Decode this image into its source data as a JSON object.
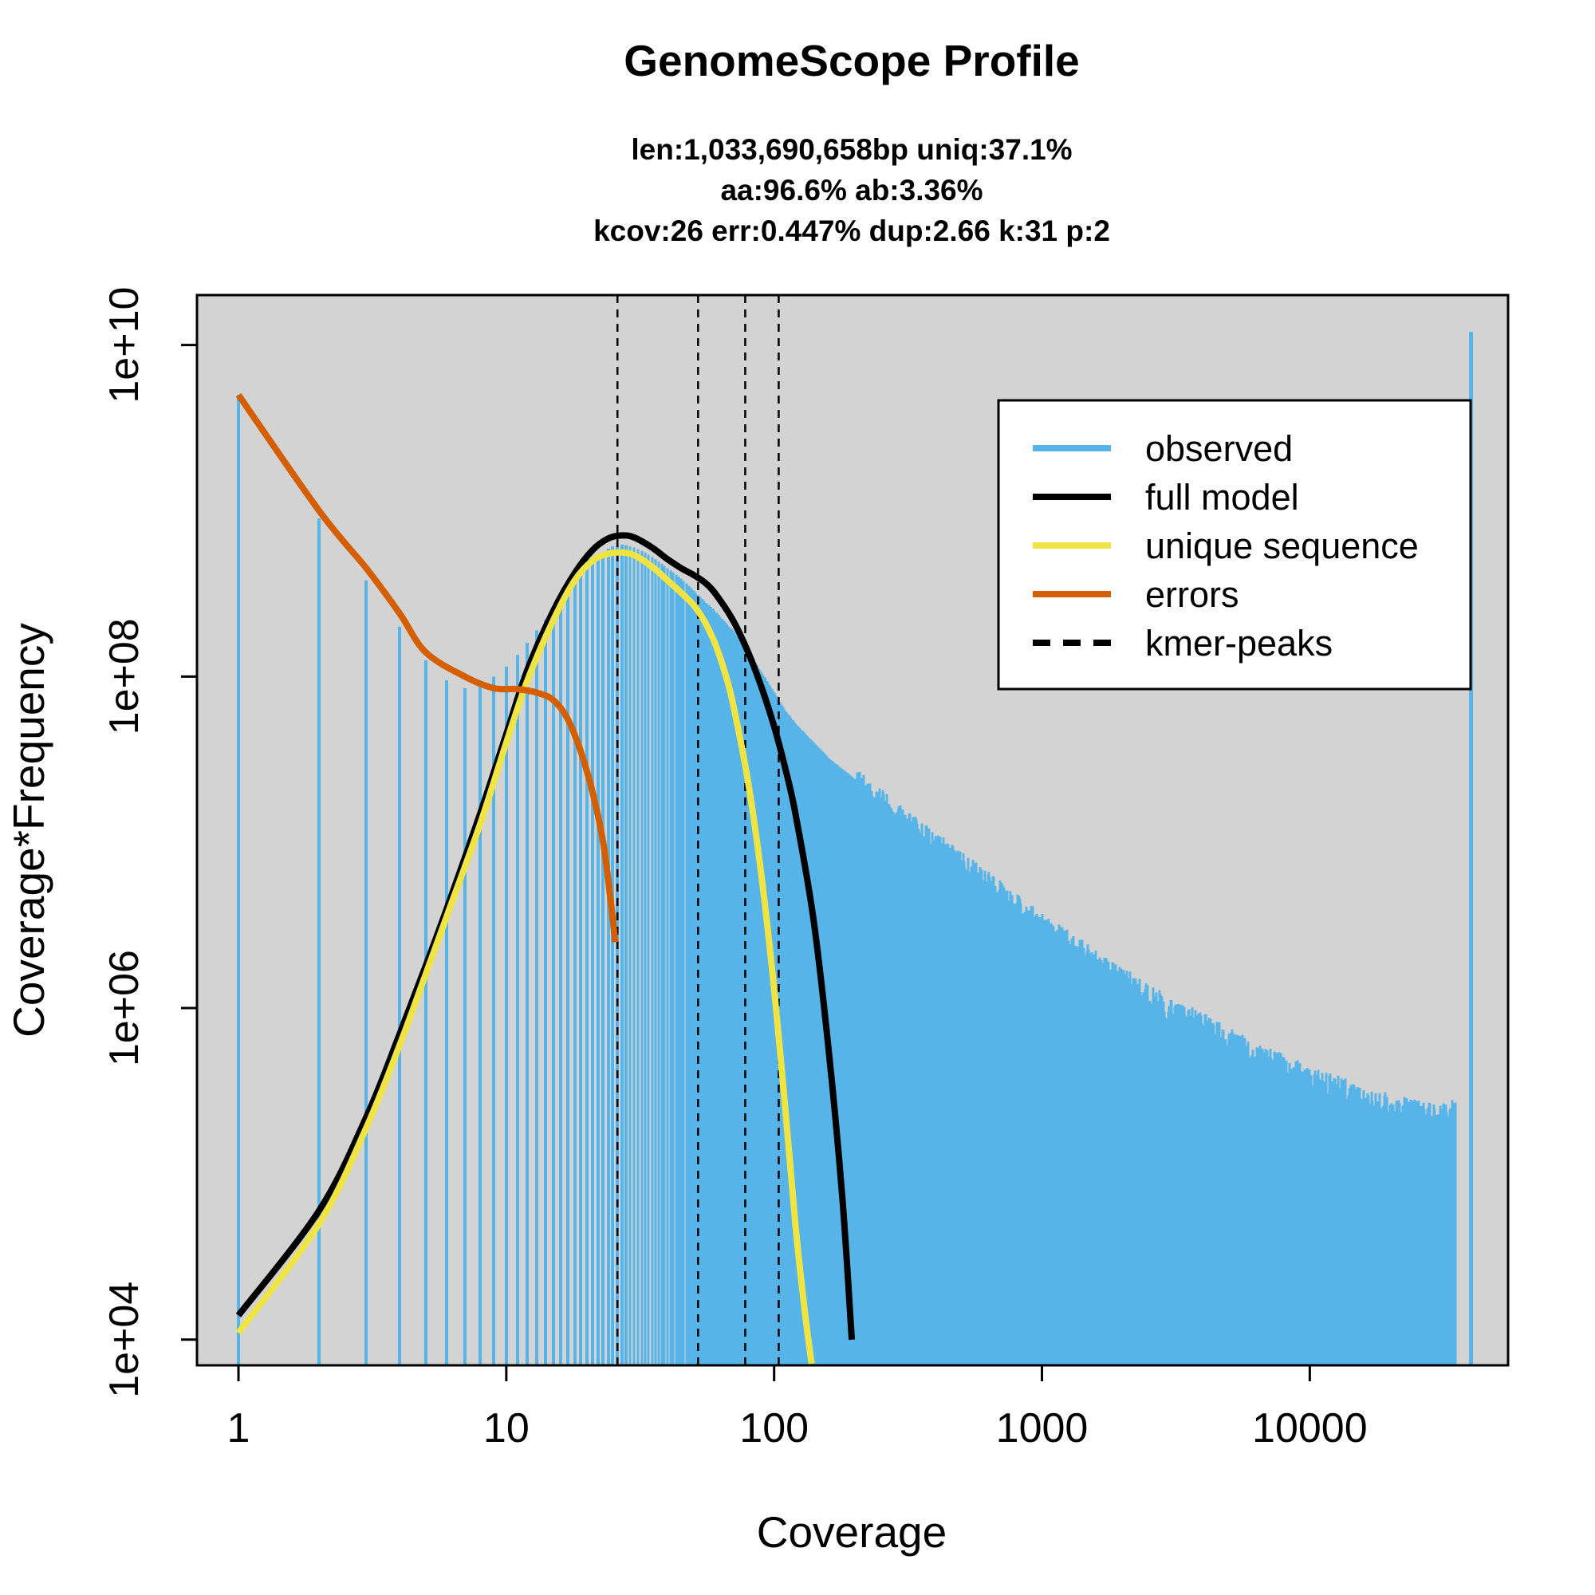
{
  "chart_data": {
    "type": "bar",
    "title": "GenomeScope Profile",
    "subtitle_lines": [
      "len:1,033,690,658bp uniq:37.1%",
      "aa:96.6% ab:3.36%",
      "kcov:26 err:0.447%  dup:2.66  k:31 p:2"
    ],
    "xlabel": "Coverage",
    "ylabel": "Coverage*Frequency",
    "x_scale": "log",
    "y_scale": "log",
    "xlim": [
      0.7,
      55000
    ],
    "ylim": [
      7000,
      20000000000
    ],
    "x_ticks": [
      {
        "value": 1,
        "label": "1"
      },
      {
        "value": 10,
        "label": "10"
      },
      {
        "value": 100,
        "label": "100"
      },
      {
        "value": 1000,
        "label": "1000"
      },
      {
        "value": 10000,
        "label": "10000"
      }
    ],
    "y_ticks": [
      {
        "value": 10000,
        "label": "1e+04"
      },
      {
        "value": 1000000,
        "label": "1e+06"
      },
      {
        "value": 100000000,
        "label": "1e+08"
      },
      {
        "value": 10000000000,
        "label": "1e+10"
      }
    ],
    "background_color": "#d3d3d3",
    "observed_sample": {
      "name": "observed",
      "color": "#56b4e9",
      "x": [
        1,
        2,
        3,
        4,
        5,
        6,
        7,
        8,
        9,
        10,
        11,
        12,
        13,
        14,
        15,
        16,
        17,
        18,
        19,
        20,
        21,
        22,
        23,
        24,
        25,
        26,
        27,
        28,
        30,
        33,
        36,
        40,
        45,
        50,
        60,
        70,
        80,
        90,
        100,
        110,
        120,
        140,
        160,
        200,
        250,
        300,
        400,
        500,
        700,
        1000,
        1300,
        1700,
        2000,
        2500,
        3000,
        4000,
        5000,
        6000,
        8000,
        10000,
        13000,
        16000,
        20000,
        25000,
        30000,
        35000,
        38000,
        40000
      ],
      "y": [
        5000000000,
        900000000,
        380000000,
        200000000,
        125000000,
        95000000,
        85000000,
        92000000,
        100000000,
        115000000,
        135000000,
        160000000,
        190000000,
        220000000,
        260000000,
        300000000,
        340000000,
        380000000,
        420000000,
        460000000,
        500000000,
        530000000,
        560000000,
        590000000,
        610000000,
        620000000,
        625000000,
        620000000,
        600000000,
        560000000,
        510000000,
        450000000,
        390000000,
        330000000,
        250000000,
        190000000,
        140000000,
        105000000,
        80000000,
        62000000,
        52000000,
        40000000,
        32000000,
        24000000,
        18000000,
        14000000,
        10000000,
        7500000,
        5000000,
        3200000,
        2400000,
        1800000,
        1500000,
        1200000,
        1000000,
        800000,
        650000,
        550000,
        450000,
        380000,
        330000,
        290000,
        260000,
        240000,
        230000,
        240000,
        280000,
        12000000000
      ]
    },
    "series": [
      {
        "name": "full model",
        "color": "#000000",
        "x": [
          1,
          2,
          3,
          4,
          5,
          6,
          8,
          10,
          12,
          15,
          18,
          21,
          24,
          27,
          30,
          35,
          40,
          45,
          50,
          55,
          60,
          70,
          80,
          90,
          100,
          110,
          120,
          140,
          160,
          180,
          195
        ],
        "y": [
          14000,
          60000,
          220000,
          700000,
          1800000,
          4000000,
          15000000,
          45000000,
          110000000,
          250000000,
          420000000,
          580000000,
          680000000,
          710000000,
          690000000,
          600000000,
          510000000,
          450000000,
          410000000,
          370000000,
          320000000,
          220000000,
          140000000,
          85000000,
          50000000,
          28000000,
          15000000,
          3500000,
          550000,
          70000,
          10000
        ]
      },
      {
        "name": "unique sequence",
        "color": "#f0e442",
        "x": [
          1,
          2,
          3,
          4,
          5,
          6,
          8,
          10,
          12,
          15,
          18,
          21,
          24,
          27,
          30,
          35,
          40,
          45,
          50,
          55,
          60,
          65,
          70,
          80,
          90,
          100,
          110,
          120,
          130,
          138
        ],
        "y": [
          11000,
          50000,
          190000,
          600000,
          1600000,
          3600000,
          13000000,
          40000000,
          95000000,
          220000000,
          380000000,
          500000000,
          550000000,
          560000000,
          540000000,
          460000000,
          380000000,
          320000000,
          270000000,
          215000000,
          160000000,
          110000000,
          70000000,
          23000000,
          6000000,
          1300000,
          250000,
          50000,
          15000,
          7000
        ]
      },
      {
        "name": "errors",
        "color": "#d55e00",
        "x": [
          1,
          2,
          3,
          4,
          5,
          7,
          9,
          11,
          13,
          15,
          17,
          19,
          21,
          23,
          24.5,
          25.5
        ],
        "y": [
          5000000000,
          1000000000,
          450000000,
          240000000,
          140000000,
          100000000,
          85000000,
          84000000,
          80000000,
          72000000,
          55000000,
          35000000,
          20000000,
          10000000,
          4500000,
          2500000
        ]
      },
      {
        "name": "kmer-peaks",
        "color": "#000000",
        "style": "dashed",
        "x": [
          26,
          52,
          78,
          104
        ]
      }
    ],
    "legend": {
      "position": "top-right",
      "entries": [
        {
          "label": "observed",
          "color": "#56b4e9",
          "style": "solid"
        },
        {
          "label": "full model",
          "color": "#000000",
          "style": "solid"
        },
        {
          "label": "unique sequence",
          "color": "#f0e442",
          "style": "solid"
        },
        {
          "label": "errors",
          "color": "#d55e00",
          "style": "solid"
        },
        {
          "label": "kmer-peaks",
          "color": "#000000",
          "style": "dashed"
        }
      ]
    }
  }
}
